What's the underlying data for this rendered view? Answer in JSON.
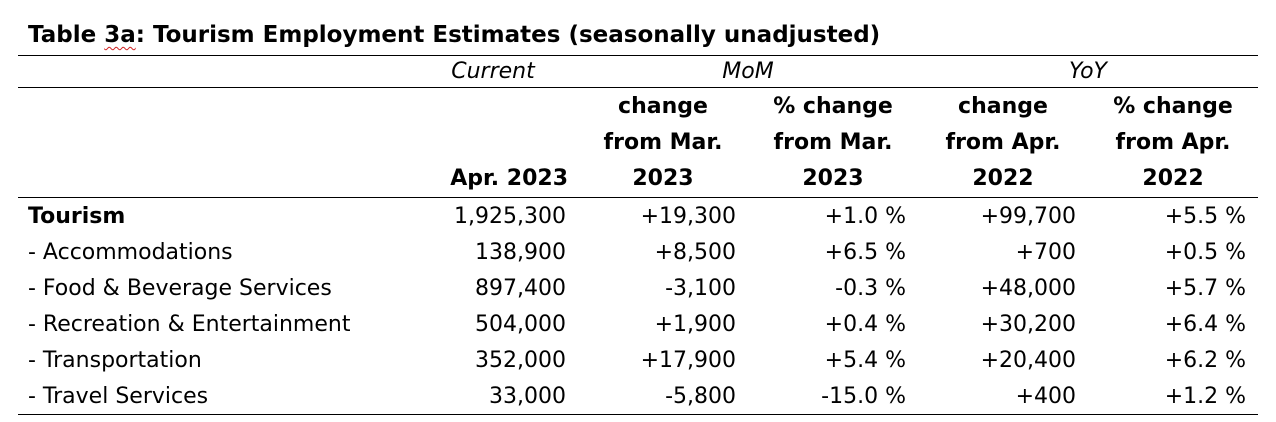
{
  "title_prefix": "Table ",
  "title_squiggle": "3a",
  "title_suffix": ": Tourism Employment Estimates (seasonally unadjusted)",
  "groups": {
    "current": "Current",
    "mom": "MoM",
    "yoy": "YoY"
  },
  "subheads": {
    "current": "Apr. 2023",
    "mom_change": [
      "change",
      "from Mar.",
      "2023"
    ],
    "mom_pct": [
      "% change",
      "from Mar.",
      "2023"
    ],
    "yoy_change": [
      "change",
      "from Apr.",
      "2022"
    ],
    "yoy_pct": [
      "% change",
      "from Apr.",
      "2022"
    ]
  },
  "rows": [
    {
      "label": "Tourism",
      "current": "1,925,300",
      "mom_change": "+19,300",
      "mom_pct": "+1.0 %",
      "yoy_change": "+99,700",
      "yoy_pct": "+5.5 %"
    },
    {
      "label": "- Accommodations",
      "current": "138,900",
      "mom_change": "+8,500",
      "mom_pct": "+6.5 %",
      "yoy_change": "+700",
      "yoy_pct": "+0.5 %"
    },
    {
      "label": "- Food & Beverage Services",
      "current": "897,400",
      "mom_change": "-3,100",
      "mom_pct": "-0.3 %",
      "yoy_change": "+48,000",
      "yoy_pct": "+5.7 %"
    },
    {
      "label": "- Recreation & Entertainment",
      "current": "504,000",
      "mom_change": "+1,900",
      "mom_pct": "+0.4 %",
      "yoy_change": "+30,200",
      "yoy_pct": "+6.4 %"
    },
    {
      "label": "- Transportation",
      "current": "352,000",
      "mom_change": "+17,900",
      "mom_pct": "+5.4 %",
      "yoy_change": "+20,400",
      "yoy_pct": "+6.2 %"
    },
    {
      "label": "- Travel Services",
      "current": "33,000",
      "mom_change": "-5,800",
      "mom_pct": "-15.0 %",
      "yoy_change": "+400",
      "yoy_pct": "+1.2 %"
    }
  ]
}
